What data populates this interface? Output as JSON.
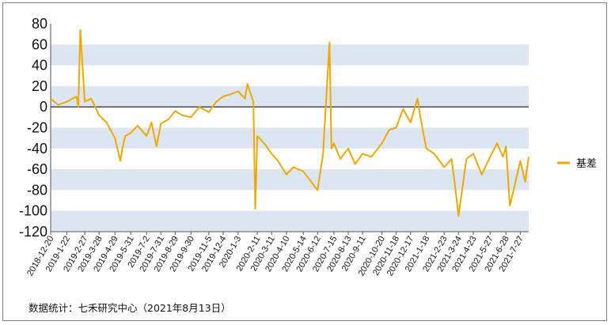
{
  "chart_data": {
    "type": "line",
    "title": "",
    "xlabel": "",
    "ylabel": "",
    "ylim": [
      -120,
      80
    ],
    "yticks": [
      80,
      60,
      40,
      20,
      0,
      -20,
      -40,
      -60,
      -80,
      -100,
      -120
    ],
    "ytick_labels": [
      "80",
      "60",
      "40",
      "20",
      "0",
      "-20",
      "-40",
      "-60",
      "-80",
      "-100",
      "-120"
    ],
    "xtick_labels": [
      "2018-12-20",
      "2019-1-22",
      "2019-2-27",
      "2019-3-28",
      "2019-4-29",
      "2019-5-31",
      "2019-7-2",
      "2019-7-31",
      "2019-8-29",
      "2019-9-30",
      "2019-11-5",
      "2019-12-4",
      "2020-1-3",
      "2020-2-11",
      "2020-3-11",
      "2020-4-10",
      "2020-5-14",
      "2020-6-12",
      "2020-7-15",
      "2020-8-13",
      "2020-9-11",
      "2020-10-20",
      "2020-11-18",
      "2020-12-17",
      "2021-1-18",
      "2021-2-23",
      "2021-3-24",
      "2021-4-23",
      "2021-5-27",
      "2021-6-28",
      "2021-7-27"
    ],
    "grid": "alternating horizontal bands",
    "legend_position": "right",
    "series": [
      {
        "name": "基差",
        "color": "#f0a800",
        "x": [
          "2018-12-20",
          "2019-1-4",
          "2019-1-22",
          "2019-2-10",
          "2019-2-14",
          "2019-2-18",
          "2019-2-27",
          "2019-3-12",
          "2019-3-18",
          "2019-3-28",
          "2019-4-12",
          "2019-4-29",
          "2019-5-10",
          "2019-5-14",
          "2019-5-20",
          "2019-5-31",
          "2019-6-14",
          "2019-7-2",
          "2019-7-12",
          "2019-7-22",
          "2019-7-31",
          "2019-8-15",
          "2019-8-29",
          "2019-9-12",
          "2019-9-30",
          "2019-10-17",
          "2019-11-5",
          "2019-11-20",
          "2019-12-4",
          "2019-12-18",
          "2020-1-3",
          "2020-1-17",
          "2020-1-22",
          "2020-2-3",
          "2020-2-7",
          "2020-2-11",
          "2020-2-25",
          "2020-3-11",
          "2020-3-24",
          "2020-4-10",
          "2020-4-24",
          "2020-5-14",
          "2020-5-27",
          "2020-6-12",
          "2020-6-23",
          "2020-7-6",
          "2020-7-10",
          "2020-7-15",
          "2020-7-28",
          "2020-8-13",
          "2020-8-27",
          "2020-9-11",
          "2020-9-29",
          "2020-10-20",
          "2020-11-4",
          "2020-11-18",
          "2020-12-2",
          "2020-12-17",
          "2020-12-31",
          "2021-1-6",
          "2021-1-18",
          "2021-2-3",
          "2021-2-23",
          "2021-3-10",
          "2021-3-18",
          "2021-3-24",
          "2021-4-9",
          "2021-4-23",
          "2021-5-10",
          "2021-5-27",
          "2021-6-10",
          "2021-6-22",
          "2021-6-28",
          "2021-7-6",
          "2021-7-27",
          "2021-8-6",
          "2021-8-13"
        ],
        "y": [
          8,
          2,
          5,
          10,
          0,
          74,
          5,
          8,
          2,
          -8,
          -15,
          -30,
          -52,
          -40,
          -28,
          -25,
          -18,
          -28,
          -15,
          -38,
          -16,
          -12,
          -4,
          -8,
          -10,
          0,
          -5,
          5,
          10,
          12,
          15,
          8,
          22,
          5,
          -98,
          -28,
          -35,
          -45,
          -52,
          -65,
          -58,
          -62,
          -70,
          -80,
          -45,
          62,
          -40,
          -35,
          -50,
          -40,
          -55,
          -45,
          -48,
          -35,
          -22,
          -20,
          -2,
          -15,
          8,
          -10,
          -40,
          -45,
          -58,
          -50,
          -80,
          -105,
          -50,
          -45,
          -65,
          -48,
          -35,
          -48,
          -38,
          -95,
          -52,
          -72,
          -48
        ]
      }
    ]
  },
  "legend": {
    "label": "基差"
  },
  "source": {
    "text": "数据统计：七禾研究中心（2021年8月13日）"
  }
}
